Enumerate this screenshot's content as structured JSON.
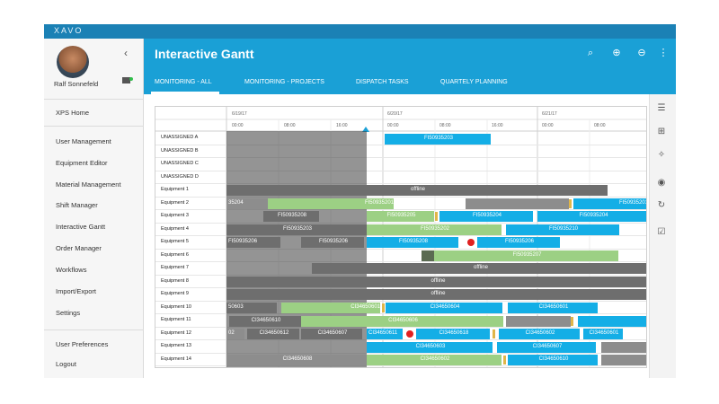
{
  "app": {
    "brand": "XAVO",
    "title": "Interactive Gantt"
  },
  "user": {
    "name": "Ralf Sonnefeld"
  },
  "sidebar": {
    "collapse_icon": "chevron-left-icon",
    "items": [
      {
        "label": "XPS Home"
      },
      {
        "label": "User Management"
      },
      {
        "label": "Equipment Editor"
      },
      {
        "label": "Material Management"
      },
      {
        "label": "Shift Manager"
      },
      {
        "label": "Interactive Gantt"
      },
      {
        "label": "Order Manager"
      },
      {
        "label": "Workflows"
      },
      {
        "label": "Import/Export"
      },
      {
        "label": "Settings"
      },
      {
        "label": "User Preferences"
      },
      {
        "label": "Logout"
      }
    ]
  },
  "tabs": [
    {
      "label": "MONITORING - ALL"
    },
    {
      "label": "MONITORING - PROJECTS"
    },
    {
      "label": "DISPATCH TASKS"
    },
    {
      "label": "QUARTELY PLANNING"
    }
  ],
  "header_icons": [
    "search-icon",
    "zoom-in-icon",
    "zoom-out-icon",
    "more-vert-icon"
  ],
  "right_icons": [
    "list-icon",
    "add-box-icon",
    "magic-wand-icon",
    "eye-icon",
    "refresh-icon",
    "checkbox-icon"
  ],
  "gantt": {
    "dates": [
      "6/19/17",
      "6/20/17",
      "6/21/17"
    ],
    "times": [
      "00:00",
      "08:00",
      "16:00",
      "00:00",
      "08:00",
      "16:00",
      "00:00",
      "08:00"
    ],
    "rows": [
      "UNASSIGNED A",
      "UNASSIGNED B",
      "UNASSIGNED C",
      "UNASSIGNED D",
      "Equipment 1",
      "Equipment 2",
      "Equipment 3",
      "Equipment 4",
      "Equipment 5",
      "Equipment 6",
      "Equipment 7",
      "Equipment 8",
      "Equipment 9",
      "Equipment 10",
      "Equipment 11",
      "Equipment 12",
      "Equipment 13",
      "Equipment 14"
    ],
    "labels": {
      "a": "FI50935203",
      "off": "offline",
      "e2a": "35204",
      "e2b": "FI50935201",
      "e2c": "FI50935201",
      "e3a": "FI50935208",
      "e3b": "FI50935205",
      "e3c": "FI50935204",
      "e3d": "FI50935204",
      "e4a": "FI50935203",
      "e4b": "FI50935202",
      "e4c": "FI50935210",
      "e5a": "FI50935206",
      "e5b": "FI50935206",
      "e5c": "FI50935208",
      "e5d": "FI50935206",
      "e6a": "FI50935207",
      "e10a": "50603",
      "e10b": "CI34650601",
      "e10c": "CI34650604",
      "e10d": "CI34650601",
      "e11a": "CI34650610",
      "e11b": "CI34650606",
      "e12a": "02",
      "e12b": "CI34650612",
      "e12c": "CI34650607",
      "e12d": "CI34650611",
      "e12e": "CI34650618",
      "e12f": "CI34650602",
      "e12g": "CI34650601",
      "e13a": "CI34650603",
      "e13b": "CI34650607",
      "e14a": "CI34650608",
      "e14b": "CI34650602",
      "e14c": "CI34650610"
    }
  },
  "colors": {
    "accent": "#1aa0d6",
    "topbar": "#1b81b5",
    "task_blue": "#14aee6",
    "task_green": "#9cd084",
    "offline": "#6e6e6e"
  }
}
